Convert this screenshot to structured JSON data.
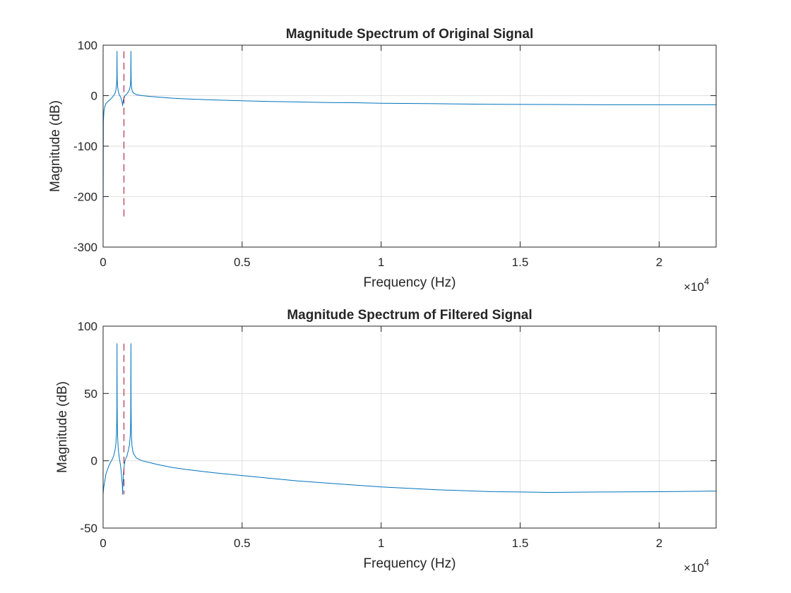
{
  "colors": {
    "spectrum_line": "#0072BD",
    "cutoff_line": "#A2142F",
    "axes": "#262626",
    "grid": "#DFDFDF"
  },
  "chart_data": [
    {
      "type": "line",
      "title": "Magnitude Spectrum of Original Signal",
      "xlabel": "Frequency (Hz)",
      "ylabel": "Magnitude (dB)",
      "xlim": [
        0,
        22050
      ],
      "ylim": [
        -300,
        100
      ],
      "xticks": [
        0,
        5000,
        10000,
        15000,
        20000
      ],
      "xtick_labels": [
        "0",
        "0.5",
        "1",
        "1.5",
        "2"
      ],
      "yticks": [
        100,
        0,
        -100,
        -200,
        -300
      ],
      "ytick_labels": [
        "100",
        "0",
        "-100",
        "-200",
        "-300"
      ],
      "x_exponent_base": "×10",
      "x_exponent_power": "4",
      "grid": true,
      "series": [
        {
          "style": "solid",
          "color": "spectrum_line",
          "x": [
            0,
            10,
            30,
            60,
            100,
            150,
            200,
            250,
            300,
            350,
            400,
            430,
            460,
            480,
            490,
            495,
            500,
            505,
            510,
            520,
            540,
            570,
            600,
            630,
            650,
            670,
            690,
            700,
            710,
            730,
            750,
            770,
            800,
            850,
            900,
            950,
            980,
            990,
            995,
            1000,
            1005,
            1010,
            1020,
            1040,
            1070,
            1100,
            1200,
            1400,
            1700,
            2000,
            2500,
            3000,
            4000,
            5000,
            6000,
            7000,
            8000,
            9000,
            10000,
            12000,
            14000,
            16000,
            18000,
            20000,
            22050
          ],
          "y": [
            -240,
            -50,
            -30,
            -22,
            -16,
            -13,
            -10,
            -8,
            -5,
            -2,
            2,
            5,
            11,
            20,
            28,
            40,
            88,
            40,
            28,
            18,
            10,
            4,
            0,
            -3,
            -6,
            -10,
            -16,
            -20,
            -15,
            -9,
            -5,
            -2,
            1,
            3,
            7,
            12,
            20,
            28,
            40,
            88,
            40,
            28,
            18,
            11,
            7,
            5,
            2,
            0,
            -1.5,
            -3,
            -5,
            -6.5,
            -8.5,
            -10,
            -11.5,
            -12.5,
            -13.5,
            -14,
            -15,
            -16,
            -17,
            -17.5,
            -18,
            -18,
            -18
          ]
        },
        {
          "style": "dashed",
          "color": "cutoff_line",
          "x": [
            750,
            750
          ],
          "y": [
            88,
            -240
          ]
        }
      ]
    },
    {
      "type": "line",
      "title": "Magnitude Spectrum of Filtered Signal",
      "xlabel": "Frequency (Hz)",
      "ylabel": "Magnitude (dB)",
      "xlim": [
        0,
        22050
      ],
      "ylim": [
        -50,
        100
      ],
      "xticks": [
        0,
        5000,
        10000,
        15000,
        20000
      ],
      "xtick_labels": [
        "0",
        "0.5",
        "1",
        "1.5",
        "2"
      ],
      "yticks": [
        100,
        50,
        0,
        -50
      ],
      "ytick_labels": [
        "100",
        "50",
        "0",
        "-50"
      ],
      "x_exponent_base": "×10",
      "x_exponent_power": "4",
      "grid": true,
      "series": [
        {
          "style": "solid",
          "color": "spectrum_line",
          "x": [
            0,
            20,
            60,
            100,
            150,
            200,
            250,
            300,
            350,
            400,
            430,
            460,
            480,
            490,
            495,
            500,
            505,
            510,
            520,
            540,
            570,
            600,
            630,
            650,
            670,
            690,
            700,
            710,
            730,
            750,
            770,
            800,
            850,
            900,
            950,
            980,
            990,
            995,
            1000,
            1005,
            1010,
            1020,
            1040,
            1070,
            1100,
            1200,
            1400,
            1700,
            2000,
            2500,
            3000,
            4000,
            5000,
            6000,
            7000,
            8000,
            9000,
            10000,
            12000,
            14000,
            15000,
            16000,
            18000,
            20000,
            22050
          ],
          "y": [
            -25,
            -20,
            -15,
            -10,
            -7,
            -4,
            -2,
            0,
            2,
            5,
            8,
            13,
            20,
            28,
            40,
            87,
            40,
            28,
            18,
            10,
            4,
            0,
            -4,
            -8,
            -13,
            -18,
            -25,
            -18,
            -11,
            -6,
            -2,
            1,
            3,
            7,
            12,
            20,
            28,
            40,
            87,
            40,
            28,
            18,
            11,
            7,
            5,
            2,
            0,
            -1.5,
            -3,
            -5,
            -6.5,
            -9,
            -11,
            -13,
            -15,
            -16.5,
            -18,
            -19.5,
            -21.5,
            -23,
            -23.2,
            -23.5,
            -23.2,
            -23,
            -22.5
          ]
        },
        {
          "style": "dashed",
          "color": "cutoff_line",
          "x": [
            750,
            750
          ],
          "y": [
            87,
            -25
          ]
        }
      ]
    }
  ]
}
